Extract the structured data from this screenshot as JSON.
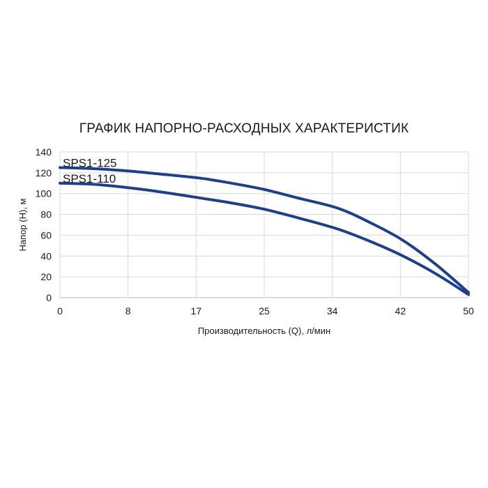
{
  "chart_data": {
    "type": "line",
    "title": "ГРАФИК НАПОРНО-РАСХОДНЫХ ХАРАКТЕРИСТИК",
    "xlabel": "Производительность (Q), л/мин",
    "ylabel": "Напор (H), м",
    "x_ticks": [
      "0",
      "8",
      "17",
      "25",
      "34",
      "42",
      "50"
    ],
    "y_ticks": [
      "0",
      "20",
      "40",
      "60",
      "80",
      "100",
      "120",
      "140"
    ],
    "xlim": [
      0,
      50
    ],
    "ylim": [
      0,
      140
    ],
    "grid": true,
    "series": [
      {
        "name": "SPS1-125",
        "color": "#1f3f8a",
        "x": [
          0,
          4,
          8,
          12,
          17,
          21,
          25,
          29,
          34,
          38,
          42,
          46,
          50
        ],
        "y": [
          125,
          124,
          122,
          119,
          115,
          110,
          104,
          96,
          86,
          72,
          55,
          32,
          5
        ]
      },
      {
        "name": "SPS1-110",
        "color": "#1f3f8a",
        "x": [
          0,
          4,
          8,
          12,
          17,
          21,
          25,
          29,
          34,
          38,
          42,
          46,
          50
        ],
        "y": [
          110,
          109,
          106,
          102,
          96,
          91,
          85,
          77,
          66,
          54,
          40,
          23,
          3
        ]
      }
    ]
  }
}
